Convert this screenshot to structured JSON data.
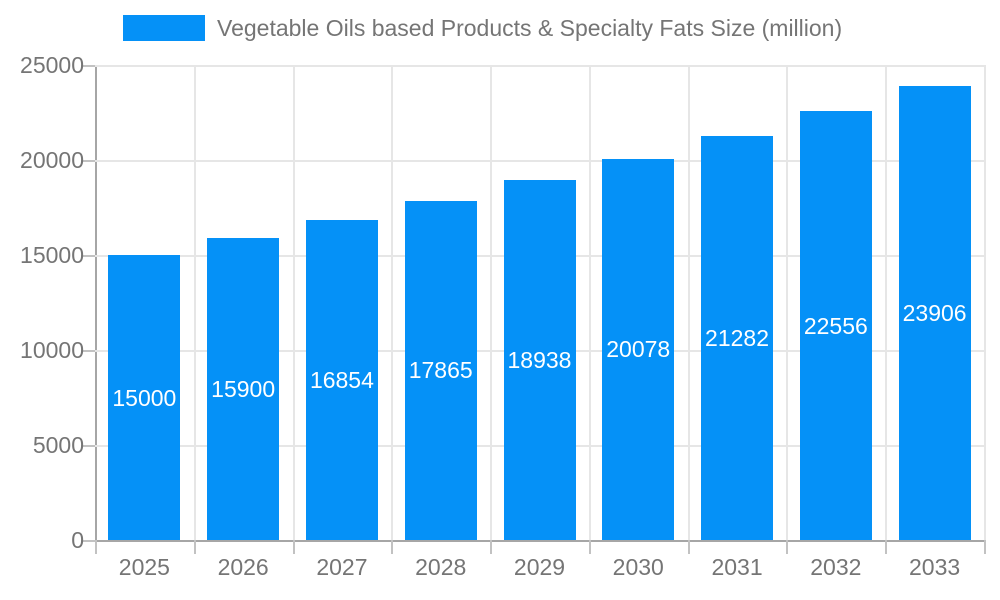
{
  "legend": {
    "label": "Vegetable Oils based Products & Specialty Fats Size (million)"
  },
  "chart_data": {
    "type": "bar",
    "title": "Vegetable Oils based Products & Specialty Fats Size (million)",
    "categories": [
      "2025",
      "2026",
      "2027",
      "2028",
      "2029",
      "2030",
      "2031",
      "2032",
      "2033"
    ],
    "values": [
      15000,
      15900,
      16854,
      17865,
      18938,
      20078,
      21282,
      22556,
      23906
    ],
    "xlabel": "",
    "ylabel": "",
    "ylim": [
      0,
      25000
    ],
    "yticks": [
      0,
      5000,
      10000,
      15000,
      20000,
      25000
    ],
    "ytick_labels": [
      "0",
      "5000",
      "10000",
      "15000",
      "20000",
      "25000"
    ],
    "grid": "both",
    "legend_position": "top",
    "value_labels": "white, centered inside bars",
    "colors": {
      "bar": "#0591f7",
      "bar_value_text": "#ffffff",
      "axis_line": "#a6a6a6",
      "gridline": "#e6e6e6",
      "tick": "#c2c2c2",
      "axis_text": "#757575",
      "legend_text": "#757575"
    }
  }
}
